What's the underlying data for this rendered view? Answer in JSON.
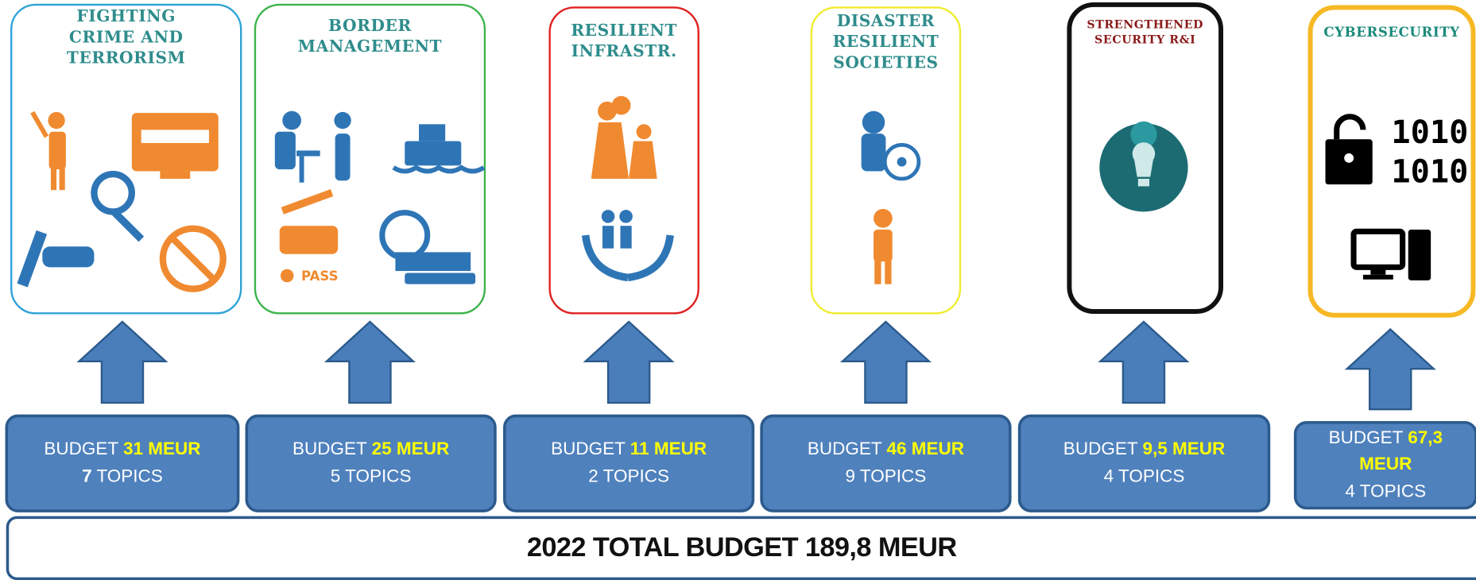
{
  "panels": [
    {
      "title": [
        "FIGHTING",
        "CRIME AND",
        "TERRORISM"
      ],
      "budget_label": "BUDGET",
      "amount": "31 MEUR",
      "topics_count": "7",
      "topics_word": "TOPICS"
    },
    {
      "title": [
        "BORDER",
        "MANAGEMENT"
      ],
      "budget_label": "BUDGET",
      "amount": "25 MEUR",
      "topics_count": "5",
      "topics_word": "TOPICS"
    },
    {
      "title": [
        "RESILIENT",
        "INFRASTR."
      ],
      "budget_label": "BUDGET",
      "amount": "11 MEUR",
      "topics_count": "2",
      "topics_word": "TOPICS"
    },
    {
      "title": [
        "DISASTER",
        "RESILIENT",
        "SOCIETIES"
      ],
      "budget_label": "BUDGET",
      "amount": "46 MEUR",
      "topics_count": "9",
      "topics_word": "TOPICS"
    },
    {
      "title": [
        "STRENGTHENED",
        "SECURITY  R&I"
      ],
      "budget_label": "BUDGET",
      "amount": "9,5 MEUR",
      "topics_count": "4",
      "topics_word": "TOPICS"
    },
    {
      "title": [
        "CYBERSECURITY"
      ],
      "budget_label": "BUDGET",
      "amount": "67,3 MEUR",
      "topics_count": "4",
      "topics_word": "TOPICS"
    }
  ],
  "total": "2022 TOTAL BUDGET 189,8 MEUR"
}
